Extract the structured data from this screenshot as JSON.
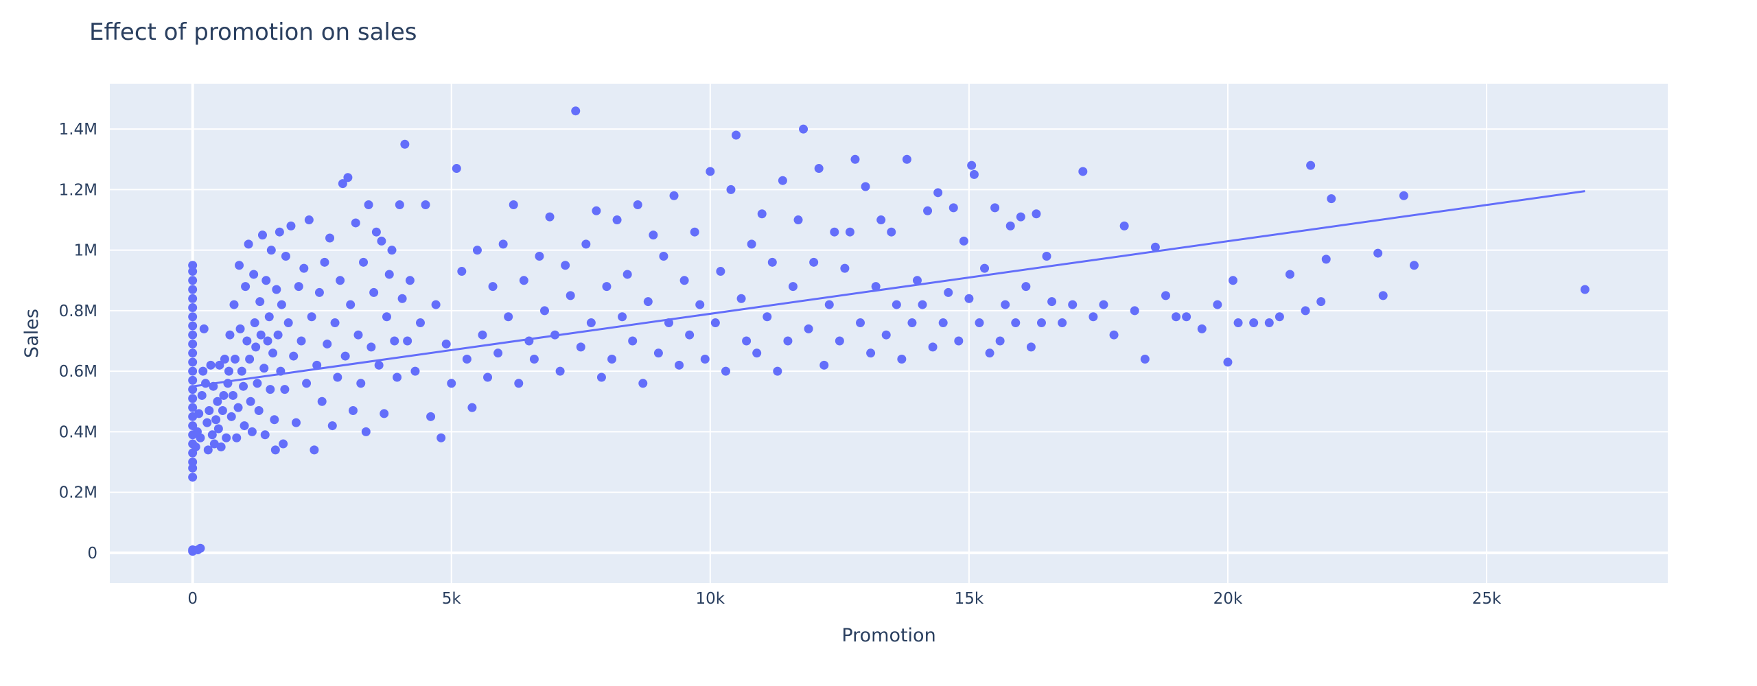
{
  "chart_data": {
    "type": "scatter",
    "title": "Effect of promotion on sales",
    "xlabel": "Promotion",
    "ylabel": "Sales",
    "xlim": [
      -1600,
      28500
    ],
    "ylim": [
      -100000,
      1550000
    ],
    "x_ticks": [
      {
        "value": 0,
        "label": "0"
      },
      {
        "value": 5000,
        "label": "5k"
      },
      {
        "value": 10000,
        "label": "10k"
      },
      {
        "value": 15000,
        "label": "15k"
      },
      {
        "value": 20000,
        "label": "20k"
      },
      {
        "value": 25000,
        "label": "25k"
      }
    ],
    "y_ticks": [
      {
        "value": 0,
        "label": "0"
      },
      {
        "value": 200000,
        "label": "0.2M"
      },
      {
        "value": 400000,
        "label": "0.4M"
      },
      {
        "value": 600000,
        "label": "0.6M"
      },
      {
        "value": 800000,
        "label": "0.8M"
      },
      {
        "value": 1000000,
        "label": "1M"
      },
      {
        "value": 1200000,
        "label": "1.2M"
      },
      {
        "value": 1400000,
        "label": "1.4M"
      }
    ],
    "grid": true,
    "colors": {
      "points": "#636efa",
      "trendline": "#636efa",
      "plot_bg": "#e5ecf6",
      "grid": "#ffffff",
      "text": "#2a3f5f"
    },
    "points": [
      [
        0,
        5000
      ],
      [
        0,
        10000
      ],
      [
        150,
        15000
      ],
      [
        100,
        10000
      ],
      [
        0,
        250000
      ],
      [
        0,
        280000
      ],
      [
        0,
        300000
      ],
      [
        0,
        330000
      ],
      [
        0,
        360000
      ],
      [
        0,
        390000
      ],
      [
        0,
        420000
      ],
      [
        0,
        450000
      ],
      [
        0,
        480000
      ],
      [
        0,
        510000
      ],
      [
        0,
        540000
      ],
      [
        0,
        570000
      ],
      [
        0,
        600000
      ],
      [
        0,
        630000
      ],
      [
        0,
        660000
      ],
      [
        0,
        690000
      ],
      [
        0,
        720000
      ],
      [
        0,
        750000
      ],
      [
        0,
        780000
      ],
      [
        0,
        810000
      ],
      [
        0,
        840000
      ],
      [
        0,
        870000
      ],
      [
        0,
        900000
      ],
      [
        0,
        930000
      ],
      [
        0,
        950000
      ],
      [
        60,
        350000
      ],
      [
        90,
        400000
      ],
      [
        120,
        460000
      ],
      [
        150,
        380000
      ],
      [
        180,
        520000
      ],
      [
        200,
        600000
      ],
      [
        220,
        740000
      ],
      [
        250,
        560000
      ],
      [
        280,
        430000
      ],
      [
        300,
        340000
      ],
      [
        320,
        470000
      ],
      [
        350,
        620000
      ],
      [
        380,
        390000
      ],
      [
        400,
        550000
      ],
      [
        420,
        360000
      ],
      [
        450,
        440000
      ],
      [
        480,
        500000
      ],
      [
        500,
        410000
      ],
      [
        520,
        620000
      ],
      [
        550,
        350000
      ],
      [
        580,
        470000
      ],
      [
        600,
        520000
      ],
      [
        620,
        640000
      ],
      [
        650,
        380000
      ],
      [
        680,
        560000
      ],
      [
        700,
        600000
      ],
      [
        720,
        720000
      ],
      [
        750,
        450000
      ],
      [
        780,
        520000
      ],
      [
        800,
        820000
      ],
      [
        820,
        640000
      ],
      [
        850,
        380000
      ],
      [
        880,
        480000
      ],
      [
        900,
        950000
      ],
      [
        920,
        740000
      ],
      [
        950,
        600000
      ],
      [
        980,
        550000
      ],
      [
        1000,
        420000
      ],
      [
        1020,
        880000
      ],
      [
        1050,
        700000
      ],
      [
        1080,
        1020000
      ],
      [
        1100,
        640000
      ],
      [
        1120,
        500000
      ],
      [
        1150,
        400000
      ],
      [
        1180,
        920000
      ],
      [
        1200,
        760000
      ],
      [
        1220,
        680000
      ],
      [
        1250,
        560000
      ],
      [
        1280,
        470000
      ],
      [
        1300,
        830000
      ],
      [
        1320,
        720000
      ],
      [
        1350,
        1050000
      ],
      [
        1380,
        610000
      ],
      [
        1400,
        390000
      ],
      [
        1420,
        900000
      ],
      [
        1450,
        700000
      ],
      [
        1480,
        780000
      ],
      [
        1500,
        540000
      ],
      [
        1520,
        1000000
      ],
      [
        1550,
        660000
      ],
      [
        1580,
        440000
      ],
      [
        1600,
        340000
      ],
      [
        1620,
        870000
      ],
      [
        1650,
        720000
      ],
      [
        1680,
        1060000
      ],
      [
        1700,
        600000
      ],
      [
        1720,
        820000
      ],
      [
        1750,
        360000
      ],
      [
        1780,
        540000
      ],
      [
        1800,
        980000
      ],
      [
        1850,
        760000
      ],
      [
        1900,
        1080000
      ],
      [
        1950,
        650000
      ],
      [
        2000,
        430000
      ],
      [
        2050,
        880000
      ],
      [
        2100,
        700000
      ],
      [
        2150,
        940000
      ],
      [
        2200,
        560000
      ],
      [
        2250,
        1100000
      ],
      [
        2300,
        780000
      ],
      [
        2350,
        340000
      ],
      [
        2400,
        620000
      ],
      [
        2450,
        860000
      ],
      [
        2500,
        500000
      ],
      [
        2550,
        960000
      ],
      [
        2600,
        690000
      ],
      [
        2650,
        1040000
      ],
      [
        2700,
        420000
      ],
      [
        2750,
        760000
      ],
      [
        2800,
        580000
      ],
      [
        2850,
        900000
      ],
      [
        2900,
        1220000
      ],
      [
        2950,
        650000
      ],
      [
        3000,
        1240000
      ],
      [
        3050,
        820000
      ],
      [
        3100,
        470000
      ],
      [
        3150,
        1090000
      ],
      [
        3200,
        720000
      ],
      [
        3250,
        560000
      ],
      [
        3300,
        960000
      ],
      [
        3350,
        400000
      ],
      [
        3400,
        1150000
      ],
      [
        3450,
        680000
      ],
      [
        3500,
        860000
      ],
      [
        3550,
        1060000
      ],
      [
        3600,
        620000
      ],
      [
        3650,
        1030000
      ],
      [
        3700,
        460000
      ],
      [
        3750,
        780000
      ],
      [
        3800,
        920000
      ],
      [
        3850,
        1000000
      ],
      [
        3900,
        700000
      ],
      [
        3950,
        580000
      ],
      [
        4000,
        1150000
      ],
      [
        4050,
        840000
      ],
      [
        4100,
        1350000
      ],
      [
        4150,
        700000
      ],
      [
        4200,
        900000
      ],
      [
        4300,
        600000
      ],
      [
        4400,
        760000
      ],
      [
        4500,
        1150000
      ],
      [
        4600,
        450000
      ],
      [
        4700,
        820000
      ],
      [
        4800,
        380000
      ],
      [
        4900,
        690000
      ],
      [
        5000,
        560000
      ],
      [
        5100,
        1270000
      ],
      [
        5200,
        930000
      ],
      [
        5300,
        640000
      ],
      [
        5400,
        480000
      ],
      [
        5500,
        1000000
      ],
      [
        5600,
        720000
      ],
      [
        5700,
        580000
      ],
      [
        5800,
        880000
      ],
      [
        5900,
        660000
      ],
      [
        6000,
        1020000
      ],
      [
        6100,
        780000
      ],
      [
        6200,
        1150000
      ],
      [
        6300,
        560000
      ],
      [
        6400,
        900000
      ],
      [
        6500,
        700000
      ],
      [
        6600,
        640000
      ],
      [
        6700,
        980000
      ],
      [
        6800,
        800000
      ],
      [
        6900,
        1110000
      ],
      [
        7000,
        720000
      ],
      [
        7100,
        600000
      ],
      [
        7200,
        950000
      ],
      [
        7300,
        850000
      ],
      [
        7400,
        1460000
      ],
      [
        7500,
        680000
      ],
      [
        7600,
        1020000
      ],
      [
        7700,
        760000
      ],
      [
        7800,
        1130000
      ],
      [
        7900,
        580000
      ],
      [
        8000,
        880000
      ],
      [
        8100,
        640000
      ],
      [
        8200,
        1100000
      ],
      [
        8300,
        780000
      ],
      [
        8400,
        920000
      ],
      [
        8500,
        700000
      ],
      [
        8600,
        1150000
      ],
      [
        8700,
        560000
      ],
      [
        8800,
        830000
      ],
      [
        8900,
        1050000
      ],
      [
        9000,
        660000
      ],
      [
        9100,
        980000
      ],
      [
        9200,
        760000
      ],
      [
        9300,
        1180000
      ],
      [
        9400,
        620000
      ],
      [
        9500,
        900000
      ],
      [
        9600,
        720000
      ],
      [
        9700,
        1060000
      ],
      [
        9800,
        820000
      ],
      [
        9900,
        640000
      ],
      [
        10000,
        1260000
      ],
      [
        10100,
        760000
      ],
      [
        10200,
        930000
      ],
      [
        10300,
        600000
      ],
      [
        10400,
        1200000
      ],
      [
        10500,
        1380000
      ],
      [
        10600,
        840000
      ],
      [
        10700,
        700000
      ],
      [
        10800,
        1020000
      ],
      [
        10900,
        660000
      ],
      [
        11000,
        1120000
      ],
      [
        11100,
        780000
      ],
      [
        11200,
        960000
      ],
      [
        11300,
        600000
      ],
      [
        11400,
        1230000
      ],
      [
        11500,
        700000
      ],
      [
        11600,
        880000
      ],
      [
        11700,
        1100000
      ],
      [
        11800,
        1400000
      ],
      [
        11900,
        740000
      ],
      [
        12000,
        960000
      ],
      [
        12100,
        1270000
      ],
      [
        12200,
        620000
      ],
      [
        12300,
        820000
      ],
      [
        12400,
        1060000
      ],
      [
        12500,
        700000
      ],
      [
        12600,
        940000
      ],
      [
        12700,
        1060000
      ],
      [
        12800,
        1300000
      ],
      [
        12900,
        760000
      ],
      [
        13000,
        1210000
      ],
      [
        13100,
        660000
      ],
      [
        13200,
        880000
      ],
      [
        13300,
        1100000
      ],
      [
        13400,
        720000
      ],
      [
        13500,
        1060000
      ],
      [
        13600,
        820000
      ],
      [
        13700,
        640000
      ],
      [
        13800,
        1300000
      ],
      [
        13900,
        760000
      ],
      [
        14000,
        900000
      ],
      [
        14100,
        820000
      ],
      [
        14200,
        1130000
      ],
      [
        14300,
        680000
      ],
      [
        14400,
        1190000
      ],
      [
        14500,
        760000
      ],
      [
        14600,
        860000
      ],
      [
        14700,
        1140000
      ],
      [
        14800,
        700000
      ],
      [
        14900,
        1030000
      ],
      [
        15000,
        840000
      ],
      [
        15050,
        1280000
      ],
      [
        15100,
        1250000
      ],
      [
        15200,
        760000
      ],
      [
        15300,
        940000
      ],
      [
        15400,
        660000
      ],
      [
        15500,
        1140000
      ],
      [
        15600,
        700000
      ],
      [
        15700,
        820000
      ],
      [
        15800,
        1080000
      ],
      [
        15900,
        760000
      ],
      [
        16000,
        1110000
      ],
      [
        16100,
        880000
      ],
      [
        16200,
        680000
      ],
      [
        16300,
        1120000
      ],
      [
        16400,
        760000
      ],
      [
        16500,
        980000
      ],
      [
        16600,
        830000
      ],
      [
        16800,
        760000
      ],
      [
        17000,
        820000
      ],
      [
        17200,
        1260000
      ],
      [
        17400,
        780000
      ],
      [
        17600,
        820000
      ],
      [
        17800,
        720000
      ],
      [
        18000,
        1080000
      ],
      [
        18200,
        800000
      ],
      [
        18400,
        640000
      ],
      [
        18600,
        1010000
      ],
      [
        18800,
        850000
      ],
      [
        19000,
        780000
      ],
      [
        19200,
        780000
      ],
      [
        19500,
        740000
      ],
      [
        19800,
        820000
      ],
      [
        20000,
        630000
      ],
      [
        20100,
        900000
      ],
      [
        20200,
        760000
      ],
      [
        20500,
        760000
      ],
      [
        20800,
        760000
      ],
      [
        21000,
        780000
      ],
      [
        21200,
        920000
      ],
      [
        21500,
        800000
      ],
      [
        21600,
        1280000
      ],
      [
        21800,
        830000
      ],
      [
        21900,
        970000
      ],
      [
        22000,
        1170000
      ],
      [
        22900,
        990000
      ],
      [
        23000,
        850000
      ],
      [
        23400,
        1180000
      ],
      [
        23600,
        950000
      ],
      [
        26900,
        870000
      ]
    ],
    "trendline": {
      "x": [
        0,
        26900
      ],
      "y": [
        550000,
        1195000
      ]
    }
  }
}
